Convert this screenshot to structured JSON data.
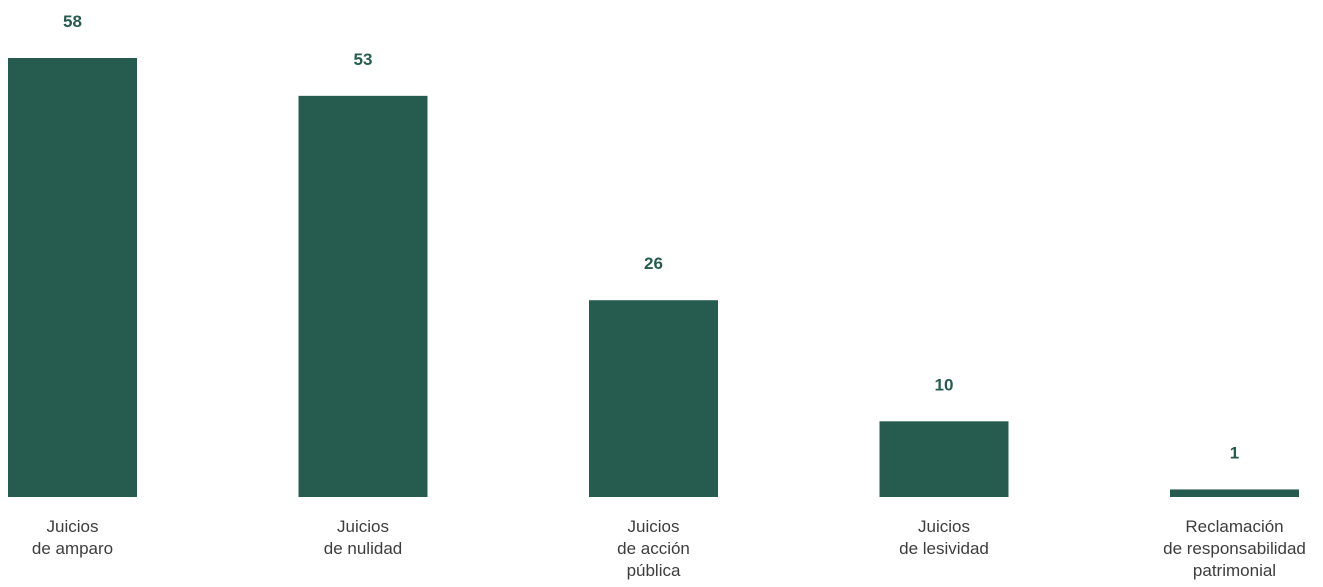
{
  "chart_data": {
    "type": "bar",
    "categories": [
      [
        "Juicios",
        "de amparo"
      ],
      [
        "Juicios",
        "de nulidad"
      ],
      [
        "Juicios",
        "de acción",
        "pública"
      ],
      [
        "Juicios",
        "de lesividad"
      ],
      [
        "Reclamación",
        "de responsabilidad",
        "patrimonial"
      ]
    ],
    "values": [
      58,
      53,
      26,
      10,
      1
    ],
    "data_labels": [
      "58",
      "53",
      "26",
      "10",
      "1"
    ],
    "title": "",
    "xlabel": "",
    "ylabel": "",
    "ylim": [
      0,
      58
    ],
    "grid": false,
    "legend": "none",
    "bar_color": "#265c4f",
    "label_color": "#265c4f",
    "category_label_color": "#3d3d3d"
  }
}
